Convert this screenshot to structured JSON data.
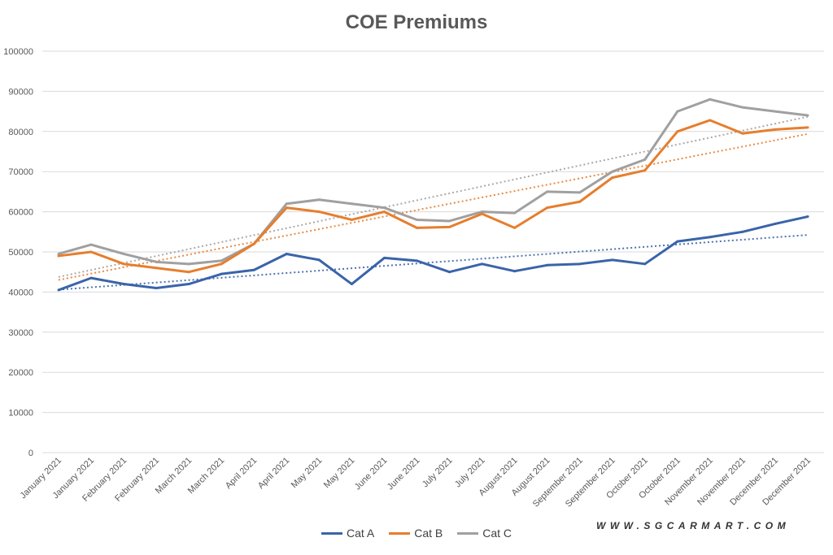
{
  "chart_data": {
    "type": "line",
    "title": "COE Premiums",
    "categories": [
      "January 2021",
      "January 2021",
      "February 2021",
      "February 2021",
      "March 2021",
      "March 2021",
      "April 2021",
      "April 2021",
      "May 2021",
      "May 2021",
      "June 2021",
      "June 2021",
      "July 2021",
      "July 2021",
      "August 2021",
      "August 2021",
      "September 2021",
      "September 2021",
      "October 2021",
      "October 2021",
      "November 2021",
      "November 2021",
      "December 2021",
      "December 2021"
    ],
    "series": [
      {
        "name": "Cat A",
        "color": "#3a64a8",
        "values": [
          40500,
          43500,
          42000,
          41000,
          42000,
          44500,
          45500,
          49500,
          48000,
          42000,
          48500,
          47800,
          45000,
          47000,
          45200,
          46700,
          47000,
          48000,
          47000,
          52600,
          53700,
          55000,
          57000,
          58800
        ],
        "trendline": "linear"
      },
      {
        "name": "Cat B",
        "color": "#e67e2e",
        "values": [
          49000,
          50000,
          47000,
          46000,
          45000,
          47000,
          52000,
          61000,
          60000,
          58000,
          60000,
          56000,
          56200,
          59500,
          56000,
          61000,
          62500,
          68500,
          70300,
          80000,
          82800,
          79500,
          80500,
          81000
        ],
        "trendline": "linear"
      },
      {
        "name": "Cat C",
        "color": "#a0a0a0",
        "values": [
          49500,
          51800,
          49500,
          47500,
          47000,
          47800,
          52000,
          62000,
          63000,
          62000,
          61000,
          58000,
          57700,
          60000,
          59700,
          65000,
          64800,
          70000,
          73000,
          85000,
          88000,
          86000,
          85000,
          84000
        ],
        "trendline": "linear"
      }
    ],
    "ylim": [
      0,
      100000
    ],
    "yticks": [
      "0",
      "10000",
      "20000",
      "30000",
      "40000",
      "50000",
      "60000",
      "70000",
      "80000",
      "90000",
      "100000"
    ],
    "grid": true,
    "legend": "bottom"
  },
  "watermark": "WWW.SGCARMART.COM"
}
